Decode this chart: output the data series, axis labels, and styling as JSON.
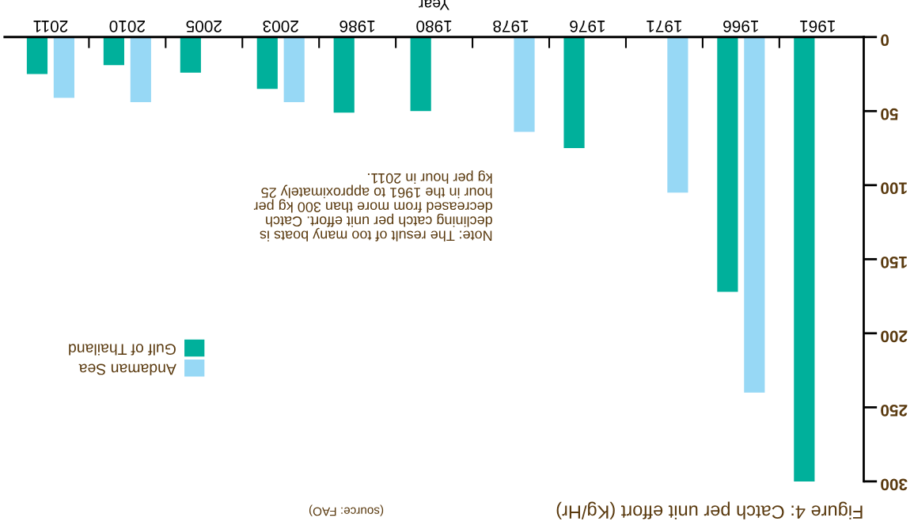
{
  "chart_data": {
    "type": "bar",
    "title": "Figure 4: Catch per unit effort (Kg/Hr)",
    "xlabel": "Year",
    "annotations": [
      "(source: FAO)",
      "Note: The result of too many boats is\ndeclining catch per unit effort. Catch\ndecreased from more than 300 kg per\nhour in the 1961 to approximately 25\nkg per hour in 2011."
    ],
    "categories": [
      "2011",
      "2010",
      "2005",
      "2003",
      "1986",
      "1980",
      "1978",
      "1976",
      "1971",
      "1966",
      "1961"
    ],
    "series": [
      {
        "name": "Gulf of Thailand",
        "color": "#00b09b",
        "values": [
          25,
          19,
          24,
          35,
          51,
          50,
          null,
          75,
          null,
          172,
          300
        ]
      },
      {
        "name": "Andaman Sea",
        "color": "#97d8f5",
        "values": [
          41,
          44,
          null,
          44,
          null,
          null,
          64,
          null,
          105,
          240,
          null
        ]
      }
    ],
    "ylim": [
      300,
      0
    ],
    "yticks": [
      0,
      50,
      100,
      150,
      200,
      250,
      300
    ],
    "grid": false,
    "legend": "left"
  }
}
